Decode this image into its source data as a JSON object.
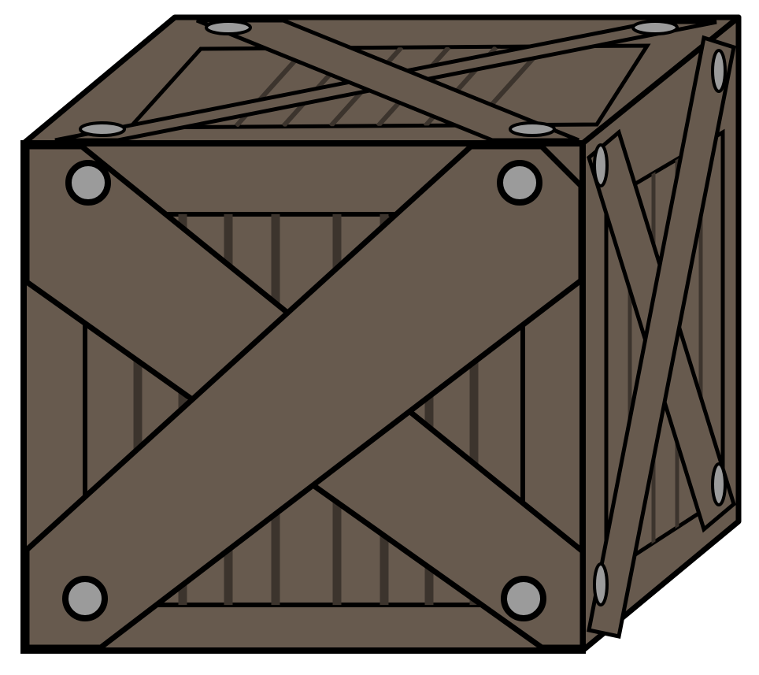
{
  "illustration": {
    "subject": "wooden-crate",
    "colors": {
      "background": "#ffffff",
      "wood": "#675a4e",
      "wood_groove": "#3c342d",
      "outline": "#000000",
      "nail_head": "#9b9b9b"
    }
  }
}
